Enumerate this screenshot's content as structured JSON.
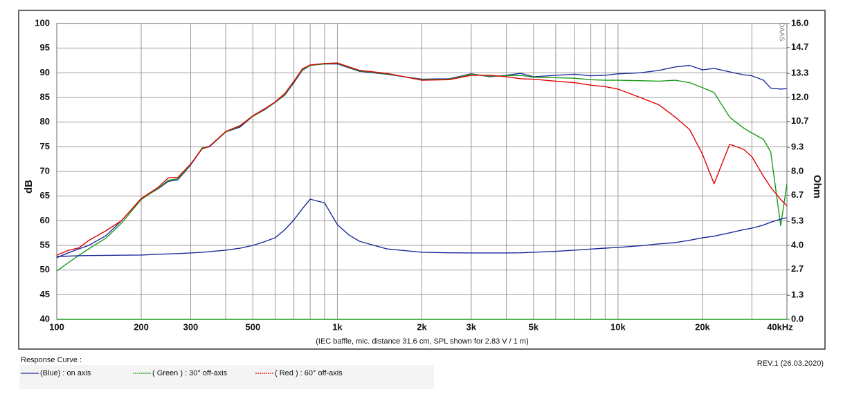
{
  "chart_data": {
    "type": "line",
    "subtitle": "(IEC baffle, mic. distance 31.6 cm, SPL shown for 2.83 V / 1 m)",
    "y_label": "dB",
    "y2_label": "Ohm",
    "watermark": "DAAS",
    "legend_title": "Response Curve :",
    "revision": "REV.1 (26.03.2020)",
    "log_x": true,
    "grid": true,
    "xlim": [
      100,
      40000
    ],
    "xticks": [
      100,
      200,
      300,
      500,
      {
        "value": 1000,
        "label": "1k"
      },
      {
        "value": 2000,
        "label": "2k"
      },
      {
        "value": 3000,
        "label": "3k"
      },
      {
        "value": 5000,
        "label": "5k"
      },
      {
        "value": 10000,
        "label": "10k"
      },
      {
        "value": 20000,
        "label": "20k"
      },
      {
        "value": 40000,
        "label": "40kHz"
      }
    ],
    "xminor": [
      400,
      600,
      700,
      800,
      900,
      4000,
      6000,
      7000,
      8000,
      9000,
      30000
    ],
    "ylim": [
      40,
      100
    ],
    "yticks": [
      40,
      45,
      50,
      55,
      60,
      65,
      70,
      75,
      80,
      85,
      90,
      95,
      100
    ],
    "y2lim": [
      0,
      16
    ],
    "y2ticks": [
      {
        "value": 0,
        "label": "0.0"
      },
      1.3,
      2.7,
      {
        "value": 4,
        "label": "4.0"
      },
      5.3,
      6.7,
      {
        "value": 8,
        "label": "8.0"
      },
      9.3,
      10.7,
      {
        "value": 12,
        "label": "12.0"
      },
      13.3,
      14.7,
      {
        "value": 16,
        "label": "16.0"
      }
    ],
    "x": [
      100,
      110,
      120,
      130,
      150,
      170,
      200,
      230,
      250,
      270,
      300,
      330,
      350,
      400,
      450,
      500,
      550,
      600,
      650,
      700,
      750,
      800,
      900,
      1000,
      1100,
      1200,
      1500,
      2000,
      2500,
      3000,
      3500,
      4000,
      4500,
      5000,
      6000,
      7000,
      8000,
      9000,
      10000,
      12000,
      14000,
      16000,
      18000,
      20000,
      22000,
      25000,
      28000,
      30000,
      33000,
      35000,
      38000,
      40000
    ],
    "series": [
      {
        "name": "(Blue)  : on axis",
        "color": "#1f2f9c",
        "values": [
          52.5,
          53.5,
          54.3,
          55,
          57,
          60,
          64.5,
          66.5,
          68,
          68.3,
          71.3,
          74.7,
          75,
          78,
          79,
          81.2,
          82.5,
          84,
          85.5,
          88,
          90.5,
          91.5,
          91.8,
          91.8,
          91,
          90.3,
          89.7,
          88.7,
          88.8,
          89.8,
          89.2,
          89.5,
          89.9,
          89.2,
          89.5,
          89.7,
          89.4,
          89.5,
          89.8,
          90,
          90.5,
          91.2,
          91.5,
          90.6,
          90.9,
          90.2,
          89.6,
          89.4,
          88.5,
          86.9,
          86.7,
          86.8
        ]
      },
      {
        "name": "( Green ) : 30° off-axis",
        "color": "#1a9a1a",
        "values": [
          49.8,
          51.5,
          53,
          54.3,
          56.5,
          59.5,
          64.3,
          66.6,
          68.2,
          68.5,
          71.4,
          74.8,
          75.1,
          78,
          79.2,
          81.2,
          82.6,
          84,
          85.6,
          88.2,
          90.6,
          91.5,
          91.8,
          91.9,
          91.1,
          90.4,
          89.8,
          88.6,
          88.7,
          89.7,
          89.3,
          89.4,
          89.5,
          89.1,
          89,
          88.9,
          88.6,
          88.5,
          88.5,
          88.4,
          88.3,
          88.5,
          88,
          87,
          86,
          81,
          78.8,
          77.8,
          76.5,
          74,
          59,
          67.5
        ]
      },
      {
        "name": "( Red ) : 60° off-axis",
        "color": "#e00000",
        "values": [
          53,
          54,
          54.5,
          56,
          58,
          60,
          64.5,
          66.8,
          68.7,
          68.8,
          71.5,
          74.6,
          75.1,
          78.1,
          79.3,
          81.3,
          82.7,
          84.1,
          85.8,
          88.3,
          90.8,
          91.6,
          91.9,
          92,
          91.2,
          90.5,
          89.9,
          88.5,
          88.6,
          89.5,
          89.5,
          89.2,
          88.8,
          88.7,
          88.3,
          88,
          87.5,
          87.2,
          86.7,
          85,
          83.5,
          81,
          78.5,
          73.5,
          67.5,
          75.5,
          74.5,
          73,
          69,
          66.8,
          64.3,
          63
        ]
      },
      {
        "axis": "y2",
        "color": "#1a2a9a",
        "values": [
          3.4,
          3.42,
          3.44,
          3.45,
          3.46,
          3.47,
          3.48,
          3.52,
          3.54,
          3.56,
          3.59,
          3.63,
          3.66,
          3.74,
          3.85,
          4.0,
          4.2,
          4.41,
          4.85,
          5.38,
          5.98,
          6.5,
          6.3,
          5.12,
          4.56,
          4.22,
          3.81,
          3.63,
          3.6,
          3.59,
          3.59,
          3.59,
          3.6,
          3.63,
          3.68,
          3.74,
          3.8,
          3.85,
          3.89,
          3.98,
          4.08,
          4.15,
          4.28,
          4.41,
          4.5,
          4.68,
          4.85,
          4.93,
          5.1,
          5.25,
          5.42,
          5.5
        ]
      }
    ]
  }
}
